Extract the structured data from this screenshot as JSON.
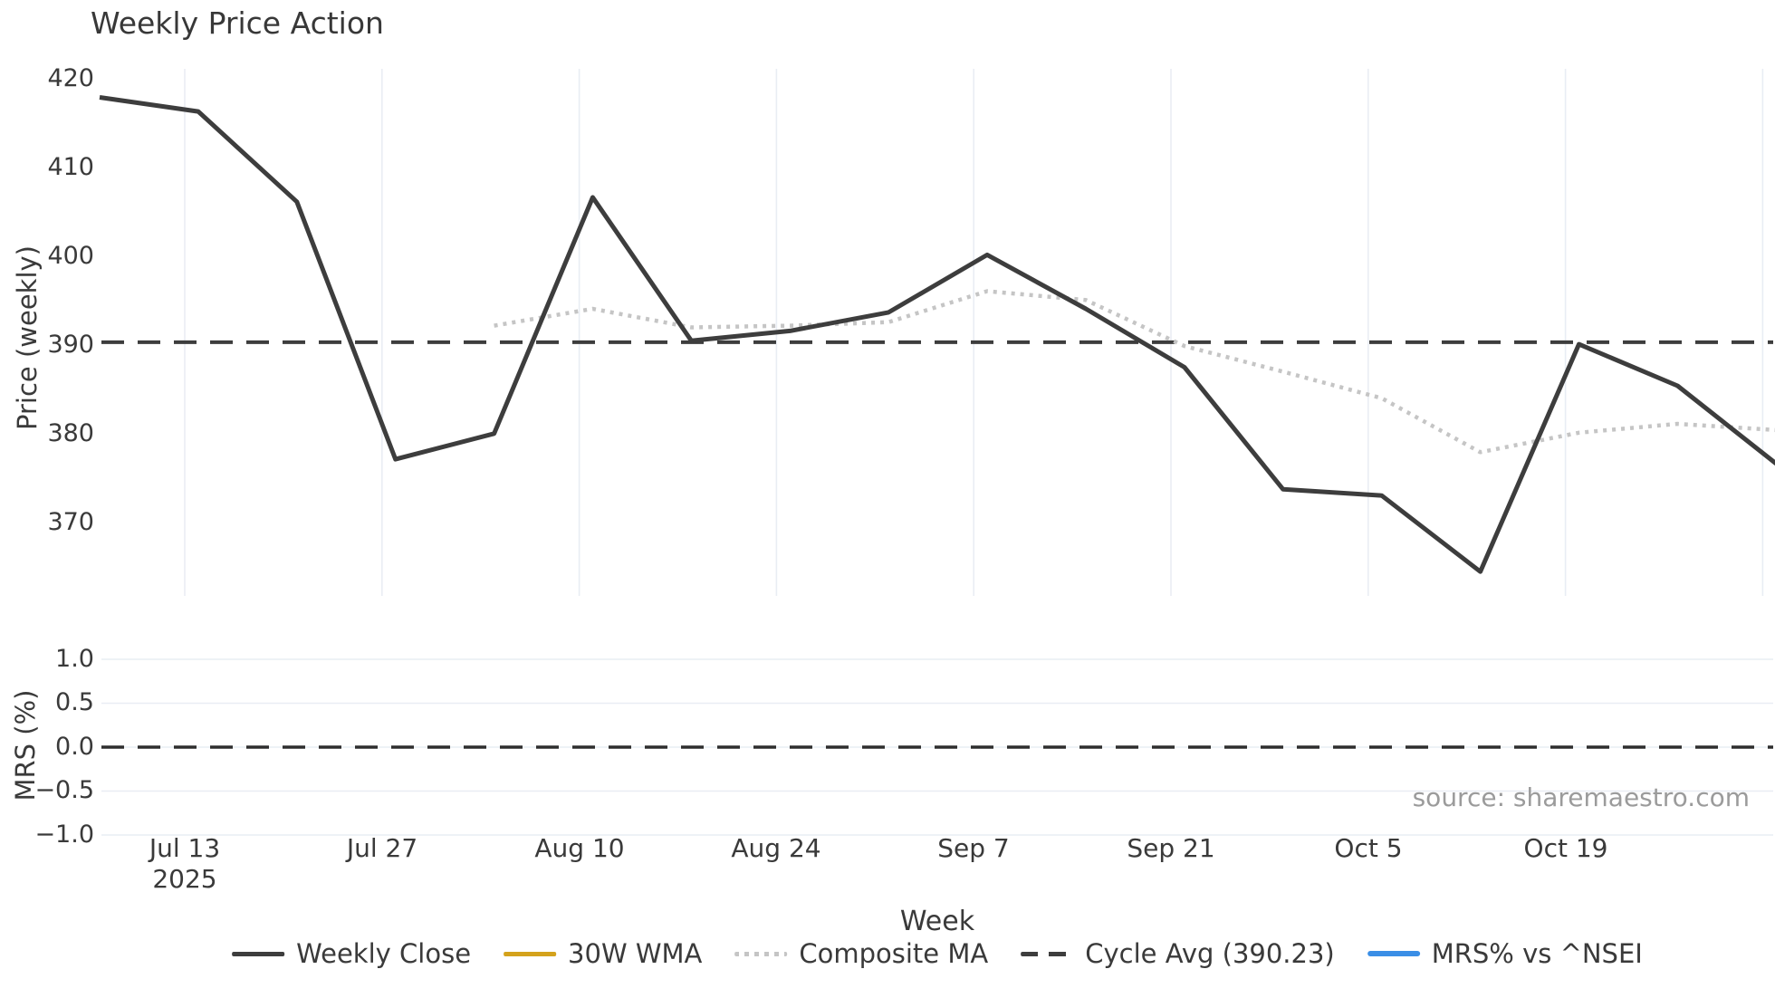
{
  "title": "Weekly Price Action",
  "axes": {
    "price": {
      "ylabel": "Price (weekly)",
      "yticks": [
        "420",
        "410",
        "400",
        "390",
        "380",
        "370"
      ]
    },
    "mrs": {
      "ylabel": "MRS (%)",
      "yticks": [
        "1.0",
        "0.5",
        "0.0",
        "−0.5",
        "−1.0"
      ]
    }
  },
  "xaxis": {
    "label": "Week",
    "ticks": [
      "Jul 13",
      "Jul 27",
      "Aug 10",
      "Aug 24",
      "Sep 7",
      "Sep 21",
      "Oct 5",
      "Oct 19"
    ],
    "year": "2025"
  },
  "source": "source: sharemaestro.com",
  "legend": [
    {
      "label": "Weekly Close",
      "color": "#3d3d3d",
      "style": "solid"
    },
    {
      "label": "30W WMA",
      "color": "#d4a21c",
      "style": "solid"
    },
    {
      "label": "Composite MA",
      "color": "#c5c5c5",
      "style": "dotted"
    },
    {
      "label": "Cycle Avg (390.23)",
      "color": "#3d3d3d",
      "style": "dashed"
    },
    {
      "label": "MRS% vs ^NSEI",
      "color": "#3a8ee6",
      "style": "solid"
    }
  ],
  "chart_data": {
    "type": "line",
    "title": "Weekly Price Action",
    "x": {
      "label": "Week",
      "tick_labels": [
        "Jul 13",
        "Jul 27",
        "Aug 10",
        "Aug 24",
        "Sep 7",
        "Sep 21",
        "Oct 5",
        "Oct 19"
      ],
      "year_label": "2025",
      "n_points": 18,
      "points_per_tick_interval": 2,
      "first_tick_at_point_index": 1
    },
    "panels": [
      {
        "name": "price",
        "ylabel": "Price (weekly)",
        "ylim": [
          361,
          421.5
        ],
        "yticks": [
          420,
          410,
          400,
          390,
          380,
          370
        ],
        "grid": "vertical",
        "series": [
          {
            "name": "Weekly Close",
            "type": "line",
            "style": "solid",
            "color": "#3d3d3d",
            "values": [
              417.9,
              416.3,
              406.1,
              377.0,
              379.9,
              406.6,
              390.4,
              391.5,
              393.6,
              400.1,
              394.0,
              387.4,
              373.6,
              372.9,
              364.3,
              390.0,
              385.3,
              376.5
            ]
          },
          {
            "name": "30W WMA",
            "type": "line",
            "style": "solid",
            "color": "#d4a21c",
            "values": []
          },
          {
            "name": "Composite MA",
            "type": "line",
            "style": "dotted",
            "color": "#c5c5c5",
            "values": [
              null,
              null,
              null,
              null,
              392.1,
              394.0,
              391.9,
              392.1,
              392.5,
              396.0,
              395.0,
              389.8,
              386.9,
              383.9,
              377.8,
              380.0,
              381.0,
              380.3
            ]
          },
          {
            "name": "Cycle Avg (390.23)",
            "type": "hline",
            "style": "dashed",
            "color": "#3d3d3d",
            "value": 390.23
          }
        ]
      },
      {
        "name": "mrs",
        "ylabel": "MRS (%)",
        "ylim": [
          -1.15,
          1.15
        ],
        "yticks": [
          1.0,
          0.5,
          0.0,
          -0.5,
          -1.0
        ],
        "grid": "horizontal",
        "series": [
          {
            "name": "MRS% vs ^NSEI",
            "type": "line",
            "style": "solid",
            "color": "#3a8ee6",
            "values": []
          },
          {
            "name": "zero-line",
            "type": "hline",
            "style": "dashed",
            "color": "#2e2e2e",
            "value": 0.0
          }
        ]
      }
    ],
    "legend_position": "bottom-center",
    "annotation": "source: sharemaestro.com"
  }
}
